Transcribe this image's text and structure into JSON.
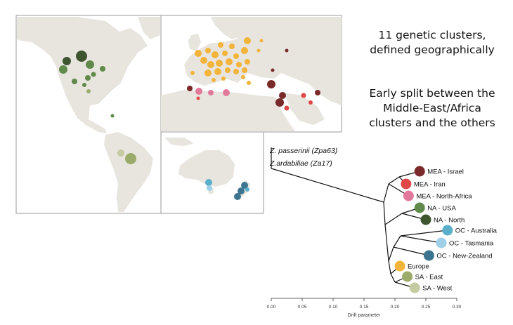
{
  "captions": {
    "headline": [
      "11 genetic clusters,",
      "defined geographically"
    ],
    "subhead": [
      "Early split between the",
      "Middle-East/Africa",
      "clusters and the others"
    ]
  },
  "colors": {
    "land": "#e8e4de",
    "ocean": "#ffffff",
    "frame": "#9a9a9a",
    "MEA_Israel": "#7a2a2a",
    "MEA_Iran": "#e04848",
    "MEA_NorthAfrica": "#e17a9a",
    "NA_USA": "#5f8a4a",
    "NA_North": "#3f5530",
    "OC_Australia": "#5aaec9",
    "OC_Tasmania": "#9fd0e8",
    "OC_NewZealand": "#3d7590",
    "Europe": "#f3b43a",
    "SA_East": "#9aab6a",
    "SA_West": "#c4cba0"
  },
  "tree": {
    "outgroups": [
      "Z. passerinii (Zpa63)",
      "Z.ardabiliae (Za17)"
    ],
    "clusters": [
      {
        "label": "MEA - Israel",
        "color_key": "MEA_Israel",
        "drift": 0.24
      },
      {
        "label": "MEA - Iran",
        "color_key": "MEA_Iran",
        "drift": 0.218
      },
      {
        "label": "MEA - North-Africa",
        "color_key": "MEA_NorthAfrica",
        "drift": 0.222
      },
      {
        "label": "NA - USA",
        "color_key": "NA_USA",
        "drift": 0.24
      },
      {
        "label": "NA - North",
        "color_key": "NA_North",
        "drift": 0.25
      },
      {
        "label": "OC - Australia",
        "color_key": "OC_Australia",
        "drift": 0.285
      },
      {
        "label": "OC - Tasmania",
        "color_key": "OC_Tasmania",
        "drift": 0.275
      },
      {
        "label": "OC - New-Zealand",
        "color_key": "OC_NewZealand",
        "drift": 0.255
      },
      {
        "label": "Europe",
        "color_key": "Europe",
        "drift": 0.208
      },
      {
        "label": "SA - East",
        "color_key": "SA_East",
        "drift": 0.22
      },
      {
        "label": "SA - West",
        "color_key": "SA_West",
        "drift": 0.232
      }
    ],
    "axis": {
      "label": "Drift parameter",
      "ticks": [
        "0.00",
        "0.05",
        "0.10",
        "0.15",
        "0.20",
        "0.25",
        "0.30"
      ]
    }
  }
}
